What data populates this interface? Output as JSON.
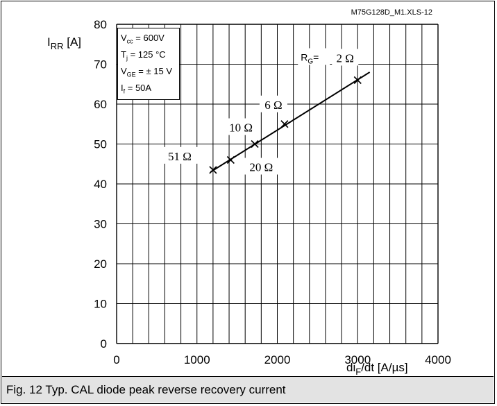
{
  "chart_data": {
    "type": "line",
    "file_tag": "M75G128D_M1.XLS-12",
    "ylabel": {
      "main": "I",
      "sub": "RR",
      "unit": " [A]"
    },
    "xlabel": {
      "main": "di",
      "sub": "F",
      "unit": "/dt [A/µs]"
    },
    "xlim": [
      0,
      4000
    ],
    "ylim": [
      0,
      80
    ],
    "x_ticks": [
      "0",
      "1000",
      "2000",
      "3000",
      "4000"
    ],
    "y_ticks": [
      "0",
      "10",
      "20",
      "30",
      "40",
      "50",
      "60",
      "70",
      "80"
    ],
    "conditions": [
      {
        "main": "V",
        "sub": "cc",
        "rest": " = 600V"
      },
      {
        "main": "T",
        "sub": "j",
        "rest": " = 125 °C"
      },
      {
        "main": "V",
        "sub": "GE",
        "rest": " = ± 15 V"
      },
      {
        "main": "I",
        "sub": "f",
        "rest": " =  50A"
      }
    ],
    "series": [
      {
        "line_x": [
          1170,
          3150
        ],
        "line_y": [
          43.0,
          68.0
        ],
        "points": [
          {
            "x": 1200,
            "y": 43.5,
            "label": "51 Ω"
          },
          {
            "x": 1420,
            "y": 46,
            "label": "20 Ω"
          },
          {
            "x": 1720,
            "y": 50,
            "label": "10 Ω"
          },
          {
            "x": 2090,
            "y": 55,
            "label": "6 Ω"
          },
          {
            "x": 3000,
            "y": 66,
            "label": "2 Ω"
          }
        ]
      }
    ],
    "rg_prefix": "R",
    "rg_sub": "G",
    "rg_eq": "=",
    "line_color": "#000000",
    "grid": true
  },
  "caption": "Fig. 12 Typ. CAL diode peak reverse recovery current"
}
